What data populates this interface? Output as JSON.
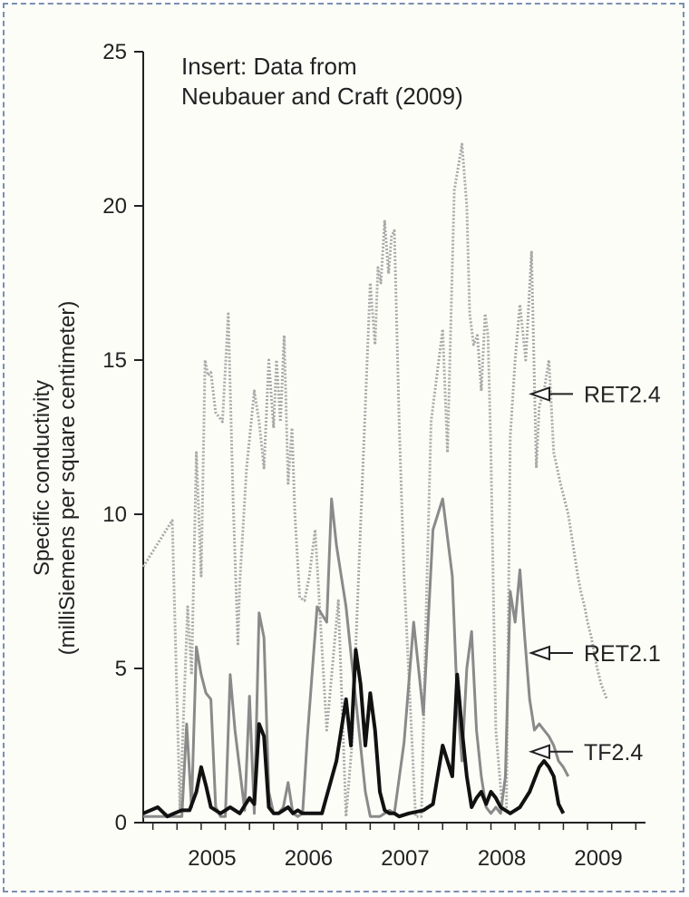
{
  "chart_data": {
    "type": "line",
    "annotation": [
      "Insert: Data from",
      "Neubauer and Craft (2009)"
    ],
    "ylabel": [
      "Specific conductivity",
      "(milliSiemens per square centimeter)"
    ],
    "xlabel": "",
    "ylim": [
      0,
      25
    ],
    "yticks": [
      0,
      5,
      10,
      15,
      20,
      25
    ],
    "xlim": [
      2004.4,
      2009.6
    ],
    "xtick_labels": [
      {
        "label": "2005",
        "x": 2005.0
      },
      {
        "label": "2006",
        "x": 2006.0
      },
      {
        "label": "2007",
        "x": 2007.0
      },
      {
        "label": "2008",
        "x": 2008.0
      },
      {
        "label": "2009",
        "x": 2009.0
      }
    ],
    "grid": false,
    "series": [
      {
        "name": "RET2.4",
        "color": "#a8a8a8",
        "style": "dotted",
        "x": [
          2004.4,
          2004.7,
          2004.78,
          2004.86,
          2004.9,
          2004.95,
          2005.0,
          2005.04,
          2005.07,
          2005.1,
          2005.15,
          2005.22,
          2005.28,
          2005.33,
          2005.38,
          2005.4,
          2005.47,
          2005.55,
          2005.6,
          2005.65,
          2005.7,
          2005.75,
          2005.78,
          2005.82,
          2005.86,
          2005.9,
          2005.94,
          2005.97,
          2006.02,
          2006.07,
          2006.12,
          2006.18,
          2006.3,
          2006.42,
          2006.5,
          2006.56,
          2006.75,
          2006.8,
          2006.83,
          2006.86,
          2006.9,
          2006.94,
          2006.97,
          2007.0,
          2007.05,
          2007.1,
          2007.22,
          2007.28,
          2007.33,
          2007.38,
          2007.5,
          2007.55,
          2007.62,
          2007.7,
          2007.75,
          2007.78,
          2007.82,
          2007.86,
          2007.9,
          2007.94,
          2007.97,
          2008.0,
          2008.05,
          2008.12,
          2008.16,
          2008.2,
          2008.25,
          2008.3,
          2008.36,
          2008.42,
          2008.47,
          2008.5,
          2008.55,
          2008.6,
          2008.65,
          2008.72,
          2008.8,
          2008.85,
          2008.9,
          2008.93,
          2008.97,
          2009.0,
          2009.04,
          2009.07,
          2009.1,
          2009.14,
          2009.2
        ],
        "values": [
          8.3,
          9.8,
          0.4,
          7.0,
          4.8,
          12.0,
          8.0,
          15.0,
          14.5,
          14.6,
          13.3,
          13.0,
          16.5,
          10.5,
          5.8,
          7.8,
          11.5,
          14.0,
          13.0,
          11.5,
          15.0,
          12.8,
          15.0,
          13.0,
          15.8,
          11.0,
          12.8,
          10.0,
          7.3,
          7.2,
          8.0,
          9.5,
          3.0,
          7.2,
          0.2,
          2.5,
          17.5,
          15.5,
          18.0,
          17.5,
          19.5,
          17.8,
          19.0,
          19.2,
          13.0,
          8.0,
          0.2,
          0.2,
          7.0,
          13.0,
          16.0,
          12.0,
          20.5,
          22.0,
          20.0,
          16.5,
          15.5,
          15.8,
          14.0,
          16.5,
          15.8,
          12.0,
          3.0,
          0.4,
          0.5,
          12.5,
          15.0,
          16.8,
          15.0,
          18.5,
          11.5,
          13.5,
          14.0,
          15.0,
          12.0,
          11.0,
          10.0,
          9.0,
          8.0,
          7.5,
          7.0,
          6.5,
          6.0,
          5.5,
          5.0,
          4.5,
          4.0
        ]
      },
      {
        "name": "RET2.1",
        "color": "#8a8a8a",
        "style": "solid",
        "x": [
          2004.4,
          2004.7,
          2004.8,
          2004.85,
          2004.9,
          2004.95,
          2005.0,
          2005.05,
          2005.1,
          2005.15,
          2005.2,
          2005.25,
          2005.3,
          2005.35,
          2005.45,
          2005.5,
          2005.55,
          2005.6,
          2005.65,
          2005.7,
          2005.75,
          2005.8,
          2005.85,
          2005.9,
          2005.95,
          2006.0,
          2006.05,
          2006.1,
          2006.2,
          2006.3,
          2006.35,
          2006.4,
          2006.5,
          2006.6,
          2006.7,
          2006.75,
          2006.8,
          2006.85,
          2006.9,
          2006.95,
          2007.0,
          2007.1,
          2007.2,
          2007.3,
          2007.4,
          2007.5,
          2007.6,
          2007.65,
          2007.7,
          2007.75,
          2007.8,
          2007.85,
          2007.9,
          2007.95,
          2008.0,
          2008.05,
          2008.1,
          2008.15,
          2008.2,
          2008.25,
          2008.3,
          2008.35,
          2008.4,
          2008.45,
          2008.5,
          2008.55,
          2008.6,
          2008.65,
          2008.7,
          2008.75,
          2008.8
        ],
        "values": [
          0.2,
          0.2,
          0.2,
          3.2,
          0.5,
          5.7,
          4.8,
          4.2,
          4.0,
          0.5,
          0.2,
          0.2,
          4.8,
          3.0,
          0.4,
          4.1,
          0.3,
          6.8,
          6.0,
          1.0,
          0.3,
          0.3,
          0.5,
          1.3,
          0.3,
          0.2,
          0.3,
          2.8,
          7.0,
          6.5,
          10.5,
          9.0,
          7.0,
          4.0,
          1.0,
          0.2,
          0.2,
          0.2,
          0.3,
          0.4,
          0.3,
          2.6,
          6.5,
          3.5,
          9.5,
          10.5,
          8.0,
          4.0,
          2.0,
          5.0,
          6.2,
          3.0,
          1.5,
          0.5,
          0.3,
          0.5,
          0.3,
          1.5,
          7.5,
          6.5,
          8.2,
          6.0,
          4.0,
          3.0,
          3.2,
          3.0,
          2.8,
          2.5,
          2.0,
          1.8,
          1.5
        ]
      },
      {
        "name": "TF2.4",
        "color": "#111111",
        "style": "solid",
        "x": [
          2004.4,
          2004.55,
          2004.65,
          2004.72,
          2004.8,
          2004.88,
          2004.95,
          2005.0,
          2005.05,
          2005.1,
          2005.15,
          2005.2,
          2005.25,
          2005.3,
          2005.4,
          2005.5,
          2005.55,
          2005.6,
          2005.65,
          2005.7,
          2005.75,
          2005.8,
          2005.85,
          2005.9,
          2005.95,
          2006.0,
          2006.05,
          2006.15,
          2006.25,
          2006.4,
          2006.5,
          2006.55,
          2006.6,
          2006.65,
          2006.7,
          2006.75,
          2006.8,
          2006.85,
          2006.9,
          2006.95,
          2007.0,
          2007.05,
          2007.15,
          2007.3,
          2007.4,
          2007.5,
          2007.6,
          2007.65,
          2007.7,
          2007.75,
          2007.8,
          2007.85,
          2007.9,
          2007.95,
          2008.0,
          2008.05,
          2008.1,
          2008.2,
          2008.3,
          2008.4,
          2008.45,
          2008.5,
          2008.55,
          2008.6,
          2008.65,
          2008.7,
          2008.75
        ],
        "values": [
          0.3,
          0.5,
          0.2,
          0.3,
          0.4,
          0.4,
          1.0,
          1.8,
          1.2,
          0.5,
          0.4,
          0.3,
          0.4,
          0.5,
          0.3,
          0.8,
          0.6,
          3.2,
          2.8,
          0.5,
          0.3,
          0.3,
          0.4,
          0.5,
          0.3,
          0.4,
          0.3,
          0.3,
          0.3,
          2.0,
          4.0,
          2.5,
          5.6,
          4.5,
          2.5,
          4.2,
          3.0,
          1.0,
          0.4,
          0.3,
          0.3,
          0.2,
          0.3,
          0.4,
          0.6,
          2.5,
          1.5,
          4.8,
          3.0,
          1.5,
          0.5,
          0.8,
          1.0,
          0.6,
          1.0,
          0.8,
          0.5,
          0.3,
          0.5,
          1.0,
          1.4,
          1.8,
          2.0,
          1.8,
          1.5,
          0.6,
          0.3
        ]
      }
    ],
    "series_labels": [
      {
        "text": "RET2.4",
        "value": 13.9
      },
      {
        "text": "RET2.1",
        "value": 5.5
      },
      {
        "text": "TF2.4",
        "value": 2.3
      }
    ]
  }
}
